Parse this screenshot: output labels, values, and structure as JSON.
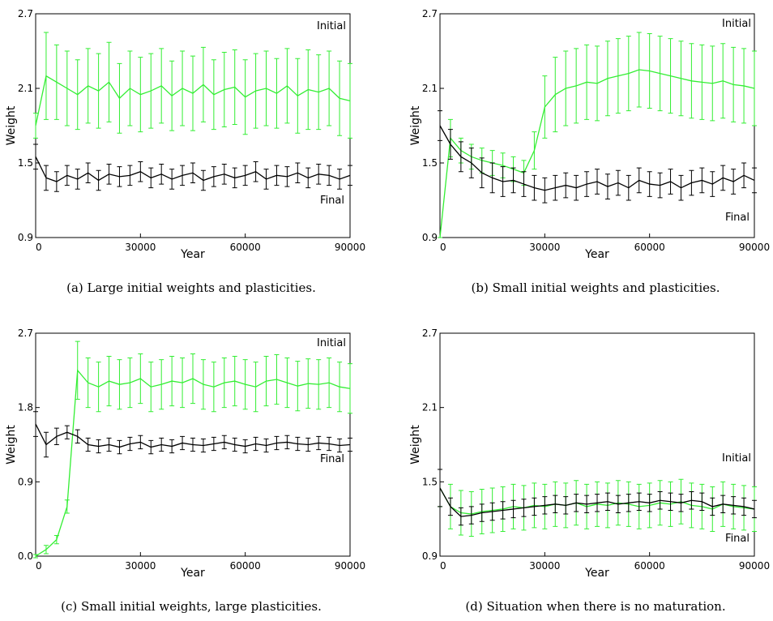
{
  "chart_data": [
    {
      "type": "line",
      "caption": "(a) Large initial weights and plasticities.",
      "x_label": "Year",
      "y_label": "Weight",
      "x": [
        0,
        3000,
        6000,
        9000,
        12000,
        15000,
        18000,
        21000,
        24000,
        27000,
        30000,
        33000,
        36000,
        39000,
        42000,
        45000,
        48000,
        51000,
        54000,
        57000,
        60000,
        63000,
        66000,
        69000,
        72000,
        75000,
        78000,
        81000,
        84000,
        87000,
        90000
      ],
      "xlim": [
        0,
        90000
      ],
      "xticks": [
        0,
        30000,
        60000,
        90000
      ],
      "ylim": [
        0.9,
        2.7
      ],
      "yticks": [
        0.9,
        1.5,
        2.1,
        2.7
      ],
      "series": [
        {
          "name": "Initial",
          "color": "#33ee33",
          "values": [
            1.8,
            2.2,
            2.15,
            2.1,
            2.05,
            2.12,
            2.08,
            2.15,
            2.02,
            2.1,
            2.05,
            2.08,
            2.12,
            2.04,
            2.1,
            2.06,
            2.13,
            2.05,
            2.09,
            2.11,
            2.03,
            2.08,
            2.1,
            2.06,
            2.12,
            2.04,
            2.09,
            2.07,
            2.1,
            2.02,
            2.0
          ],
          "errors": [
            0.1,
            0.35,
            0.3,
            0.3,
            0.28,
            0.3,
            0.3,
            0.32,
            0.28,
            0.3,
            0.3,
            0.3,
            0.3,
            0.28,
            0.3,
            0.3,
            0.3,
            0.28,
            0.3,
            0.3,
            0.3,
            0.3,
            0.3,
            0.28,
            0.3,
            0.3,
            0.32,
            0.3,
            0.3,
            0.3,
            0.3
          ]
        },
        {
          "name": "Final",
          "color": "#000000",
          "values": [
            1.55,
            1.38,
            1.35,
            1.4,
            1.37,
            1.42,
            1.36,
            1.41,
            1.39,
            1.4,
            1.43,
            1.38,
            1.41,
            1.37,
            1.4,
            1.42,
            1.36,
            1.39,
            1.41,
            1.38,
            1.4,
            1.43,
            1.37,
            1.4,
            1.39,
            1.42,
            1.38,
            1.41,
            1.4,
            1.37,
            1.4
          ],
          "errors": [
            0.1,
            0.1,
            0.08,
            0.08,
            0.08,
            0.08,
            0.08,
            0.08,
            0.08,
            0.08,
            0.08,
            0.08,
            0.08,
            0.08,
            0.08,
            0.08,
            0.08,
            0.08,
            0.08,
            0.08,
            0.08,
            0.08,
            0.08,
            0.08,
            0.08,
            0.08,
            0.08,
            0.08,
            0.08,
            0.08,
            0.08
          ]
        }
      ]
    },
    {
      "type": "line",
      "caption": "(b) Small initial weights and plasticities.",
      "x_label": "Year",
      "y_label": "Weight",
      "x": [
        0,
        3000,
        6000,
        9000,
        12000,
        15000,
        18000,
        21000,
        24000,
        27000,
        30000,
        33000,
        36000,
        39000,
        42000,
        45000,
        48000,
        51000,
        54000,
        57000,
        60000,
        63000,
        66000,
        69000,
        72000,
        75000,
        78000,
        81000,
        84000,
        87000,
        90000
      ],
      "xlim": [
        0,
        90000
      ],
      "xticks": [
        0,
        30000,
        60000,
        90000
      ],
      "ylim": [
        0.9,
        2.7
      ],
      "yticks": [
        0.9,
        1.5,
        2.1,
        2.7
      ],
      "series": [
        {
          "name": "Initial",
          "color": "#33ee33",
          "values": [
            0.9,
            1.7,
            1.6,
            1.55,
            1.52,
            1.5,
            1.48,
            1.45,
            1.42,
            1.6,
            1.95,
            2.05,
            2.1,
            2.12,
            2.15,
            2.14,
            2.18,
            2.2,
            2.22,
            2.25,
            2.24,
            2.22,
            2.2,
            2.18,
            2.16,
            2.15,
            2.14,
            2.16,
            2.13,
            2.12,
            2.1
          ],
          "errors": [
            0,
            0.15,
            0.1,
            0.1,
            0.1,
            0.1,
            0.1,
            0.1,
            0.1,
            0.15,
            0.25,
            0.3,
            0.3,
            0.3,
            0.3,
            0.3,
            0.3,
            0.3,
            0.3,
            0.3,
            0.3,
            0.3,
            0.3,
            0.3,
            0.3,
            0.3,
            0.3,
            0.3,
            0.3,
            0.3,
            0.3
          ]
        },
        {
          "name": "Final",
          "color": "#000000",
          "values": [
            1.8,
            1.65,
            1.55,
            1.5,
            1.42,
            1.38,
            1.35,
            1.36,
            1.33,
            1.3,
            1.28,
            1.3,
            1.32,
            1.3,
            1.33,
            1.35,
            1.31,
            1.34,
            1.3,
            1.36,
            1.33,
            1.32,
            1.35,
            1.3,
            1.34,
            1.36,
            1.33,
            1.38,
            1.35,
            1.4,
            1.36
          ],
          "errors": [
            0.12,
            0.12,
            0.12,
            0.12,
            0.12,
            0.12,
            0.12,
            0.1,
            0.1,
            0.1,
            0.1,
            0.1,
            0.1,
            0.1,
            0.1,
            0.1,
            0.1,
            0.1,
            0.1,
            0.1,
            0.1,
            0.1,
            0.1,
            0.1,
            0.1,
            0.1,
            0.1,
            0.1,
            0.1,
            0.1,
            0.1
          ]
        }
      ]
    },
    {
      "type": "line",
      "caption": "(c) Small initial weights, large plasticities.",
      "x_label": "Year",
      "y_label": "Weight",
      "x": [
        0,
        3000,
        6000,
        9000,
        12000,
        15000,
        18000,
        21000,
        24000,
        27000,
        30000,
        33000,
        36000,
        39000,
        42000,
        45000,
        48000,
        51000,
        54000,
        57000,
        60000,
        63000,
        66000,
        69000,
        72000,
        75000,
        78000,
        81000,
        84000,
        87000,
        90000
      ],
      "xlim": [
        0,
        90000
      ],
      "xticks": [
        0,
        30000,
        60000,
        90000
      ],
      "ylim": [
        0,
        2.7
      ],
      "yticks": [
        {
          "value": 0,
          "label": "0.0"
        },
        0.9,
        1.8,
        2.7
      ],
      "series": [
        {
          "name": "Initial",
          "color": "#33ee33",
          "values": [
            0.0,
            0.08,
            0.2,
            0.6,
            2.25,
            2.1,
            2.05,
            2.12,
            2.08,
            2.1,
            2.15,
            2.05,
            2.08,
            2.12,
            2.1,
            2.15,
            2.08,
            2.05,
            2.1,
            2.12,
            2.08,
            2.05,
            2.12,
            2.14,
            2.1,
            2.06,
            2.09,
            2.08,
            2.1,
            2.05,
            2.03
          ],
          "errors": [
            0.02,
            0.05,
            0.05,
            0.08,
            0.35,
            0.3,
            0.3,
            0.3,
            0.3,
            0.3,
            0.3,
            0.3,
            0.3,
            0.3,
            0.3,
            0.3,
            0.3,
            0.3,
            0.3,
            0.3,
            0.3,
            0.3,
            0.3,
            0.3,
            0.3,
            0.3,
            0.3,
            0.3,
            0.3,
            0.3,
            0.3
          ]
        },
        {
          "name": "Final",
          "color": "#000000",
          "values": [
            1.6,
            1.35,
            1.45,
            1.5,
            1.45,
            1.35,
            1.33,
            1.35,
            1.32,
            1.36,
            1.38,
            1.32,
            1.35,
            1.33,
            1.37,
            1.35,
            1.34,
            1.36,
            1.38,
            1.35,
            1.33,
            1.36,
            1.34,
            1.37,
            1.38,
            1.36,
            1.35,
            1.37,
            1.36,
            1.34,
            1.35
          ],
          "errors": [
            0.15,
            0.15,
            0.1,
            0.08,
            0.08,
            0.08,
            0.08,
            0.08,
            0.08,
            0.08,
            0.08,
            0.08,
            0.08,
            0.08,
            0.08,
            0.08,
            0.08,
            0.08,
            0.08,
            0.08,
            0.08,
            0.08,
            0.08,
            0.08,
            0.08,
            0.08,
            0.08,
            0.08,
            0.08,
            0.08,
            0.08
          ]
        }
      ]
    },
    {
      "type": "line",
      "caption": "(d) Situation when there is no maturation.",
      "x_label": "Year",
      "y_label": "Weight",
      "x": [
        0,
        3000,
        6000,
        9000,
        12000,
        15000,
        18000,
        21000,
        24000,
        27000,
        30000,
        33000,
        36000,
        39000,
        42000,
        45000,
        48000,
        51000,
        54000,
        57000,
        60000,
        63000,
        66000,
        69000,
        72000,
        75000,
        78000,
        81000,
        84000,
        87000,
        90000
      ],
      "xlim": [
        0,
        90000
      ],
      "xticks": [
        0,
        30000,
        60000,
        90000
      ],
      "ylim": [
        0.9,
        2.7
      ],
      "yticks": [
        0.9,
        1.5,
        2.1,
        2.7
      ],
      "series": [
        {
          "name": "Initial",
          "color": "#33ee33",
          "values": [
            1.45,
            1.3,
            1.25,
            1.24,
            1.26,
            1.27,
            1.28,
            1.3,
            1.29,
            1.31,
            1.3,
            1.32,
            1.31,
            1.33,
            1.3,
            1.32,
            1.31,
            1.33,
            1.32,
            1.3,
            1.31,
            1.33,
            1.32,
            1.34,
            1.31,
            1.3,
            1.28,
            1.32,
            1.3,
            1.29,
            1.28
          ],
          "errors": [
            0.15,
            0.18,
            0.18,
            0.18,
            0.18,
            0.18,
            0.18,
            0.18,
            0.18,
            0.18,
            0.18,
            0.18,
            0.18,
            0.18,
            0.18,
            0.18,
            0.18,
            0.18,
            0.18,
            0.18,
            0.18,
            0.18,
            0.18,
            0.18,
            0.18,
            0.18,
            0.18,
            0.18,
            0.18,
            0.18,
            0.18
          ]
        },
        {
          "name": "Final",
          "color": "#000000",
          "values": [
            1.45,
            1.3,
            1.22,
            1.23,
            1.25,
            1.26,
            1.27,
            1.28,
            1.29,
            1.3,
            1.31,
            1.32,
            1.31,
            1.33,
            1.32,
            1.33,
            1.34,
            1.32,
            1.33,
            1.34,
            1.33,
            1.35,
            1.34,
            1.33,
            1.35,
            1.34,
            1.3,
            1.32,
            1.31,
            1.3,
            1.28
          ],
          "errors": [
            0.15,
            0.07,
            0.07,
            0.07,
            0.07,
            0.07,
            0.07,
            0.07,
            0.07,
            0.07,
            0.07,
            0.07,
            0.07,
            0.07,
            0.07,
            0.07,
            0.07,
            0.07,
            0.07,
            0.07,
            0.07,
            0.07,
            0.07,
            0.07,
            0.07,
            0.07,
            0.07,
            0.07,
            0.07,
            0.07,
            0.07
          ]
        }
      ]
    }
  ]
}
